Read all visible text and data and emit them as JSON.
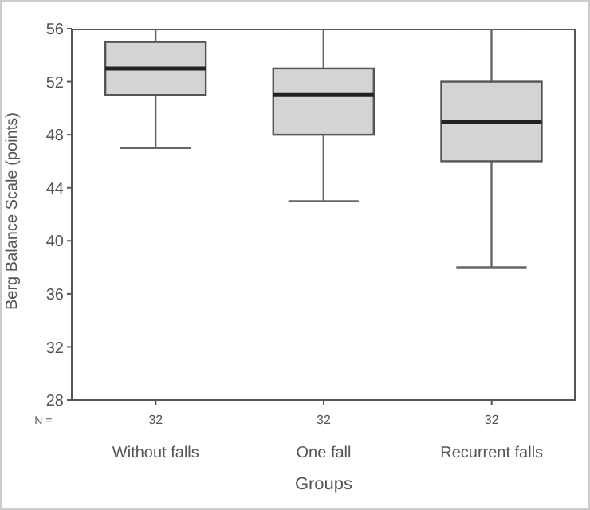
{
  "chart_data": {
    "type": "box",
    "xlabel": "Groups",
    "ylabel": "Berg Balance Scale (points)",
    "categories": [
      "Without falls",
      "One fall",
      "Recurrent falls"
    ],
    "boxes": [
      {
        "low": 47,
        "q1": 51,
        "median": 53,
        "q3": 55,
        "high": 56
      },
      {
        "low": 43,
        "q1": 48,
        "median": 51,
        "q3": 53,
        "high": 56
      },
      {
        "low": 38,
        "q1": 46,
        "median": 49,
        "q3": 52,
        "high": 56
      }
    ],
    "color": "#d4d4d4",
    "ylim": [
      28,
      56
    ],
    "yticks": [
      28,
      32,
      36,
      40,
      44,
      48,
      52,
      56
    ],
    "annotations": [
      "N =",
      "32",
      "32",
      "32"
    ]
  }
}
